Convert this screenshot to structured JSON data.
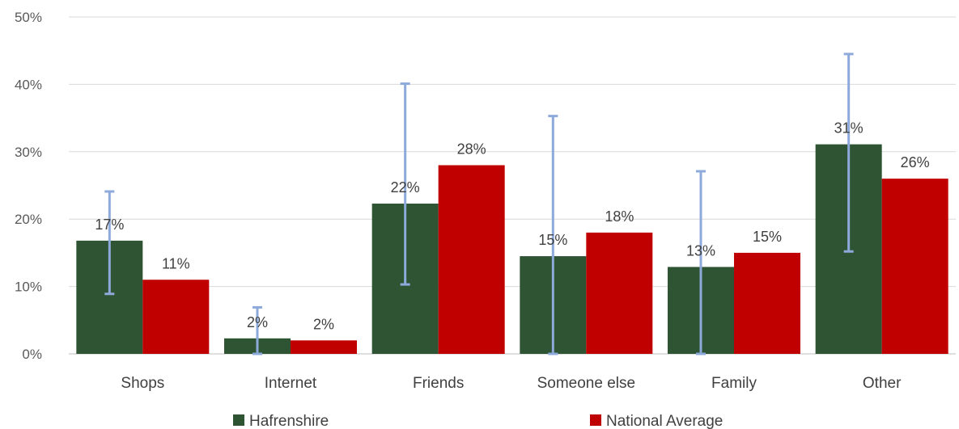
{
  "chart_data": {
    "type": "bar",
    "title": "",
    "xlabel": "",
    "ylabel": "",
    "ylim": [
      0,
      50
    ],
    "y_ticks": [
      "0%",
      "10%",
      "20%",
      "30%",
      "40%",
      "50%"
    ],
    "y_tick_values": [
      0,
      10,
      20,
      30,
      40,
      50
    ],
    "grid": true,
    "legend_position": "bottom",
    "categories": [
      "Shops",
      "Internet",
      "Friends",
      "Someone else",
      "Family",
      "Other"
    ],
    "series": [
      {
        "name": "Hafrenshire",
        "color": "#2f5434",
        "values": [
          16.8,
          2.3,
          22.3,
          14.5,
          12.9,
          31.1
        ],
        "labels": [
          "17%",
          "2%",
          "22%",
          "15%",
          "13%",
          "31%"
        ],
        "error_low": [
          8.9,
          0.0,
          10.3,
          0.0,
          0.0,
          15.2
        ],
        "error_high": [
          24.1,
          6.9,
          40.1,
          35.3,
          27.1,
          44.5
        ],
        "error_color": "#8eaadb"
      },
      {
        "name": "National Average",
        "color": "#c00000",
        "values": [
          11,
          2,
          28,
          18,
          15,
          26
        ],
        "labels": [
          "11%",
          "2%",
          "28%",
          "18%",
          "15%",
          "26%"
        ]
      }
    ]
  }
}
